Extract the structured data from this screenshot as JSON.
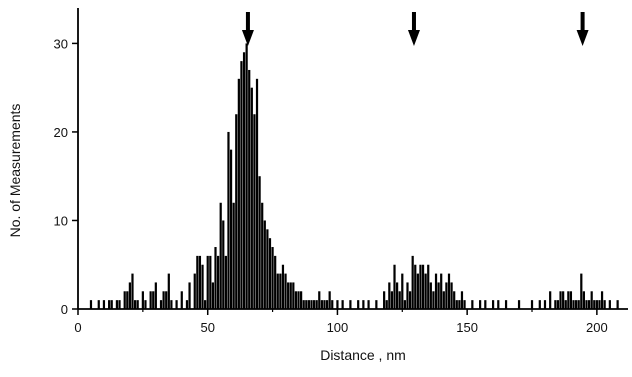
{
  "chart_data": {
    "type": "bar",
    "xlabel": "Distance , nm",
    "ylabel": "No. of Measurements",
    "xlim": [
      0,
      212
    ],
    "ylim": [
      0,
      34
    ],
    "xticks": [
      0,
      50,
      100,
      150,
      200
    ],
    "yticks": [
      0,
      10,
      20,
      30
    ],
    "xtick_labels": [
      "0",
      "50",
      "100",
      "150",
      "200"
    ],
    "ytick_labels": [
      "0",
      "10",
      "20",
      "30"
    ],
    "grid": false,
    "bar_color": "#000000",
    "arrows_at_x": [
      65.5,
      129.5,
      194.5
    ],
    "x": [
      5,
      8,
      10,
      12,
      13,
      15,
      16,
      18,
      19,
      20,
      21,
      22,
      23,
      25,
      26,
      28,
      29,
      30,
      32,
      33,
      34,
      35,
      36,
      38,
      40,
      42,
      43,
      45,
      46,
      47,
      48,
      49,
      50,
      51,
      52,
      53,
      54,
      55,
      56,
      57,
      58,
      59,
      60,
      61,
      62,
      63,
      64,
      65,
      66,
      67,
      68,
      69,
      70,
      71,
      72,
      73,
      74,
      75,
      76,
      77,
      78,
      79,
      80,
      81,
      82,
      83,
      84,
      85,
      86,
      87,
      88,
      89,
      90,
      91,
      92,
      93,
      94,
      95,
      96,
      97,
      98,
      100,
      102,
      105,
      108,
      110,
      112,
      115,
      118,
      119,
      120,
      121,
      122,
      123,
      124,
      125,
      126,
      127,
      128,
      129,
      130,
      131,
      132,
      133,
      134,
      135,
      136,
      137,
      138,
      139,
      140,
      141,
      142,
      143,
      144,
      145,
      146,
      147,
      148,
      149,
      152,
      155,
      157,
      160,
      162,
      165,
      170,
      175,
      178,
      180,
      182,
      184,
      185,
      186,
      187,
      188,
      189,
      190,
      191,
      192,
      193,
      194,
      195,
      196,
      197,
      198,
      199,
      200,
      201,
      202,
      203,
      205,
      208
    ],
    "values": [
      1,
      1,
      1,
      1,
      1,
      1,
      1,
      2,
      2,
      3,
      4,
      1,
      1,
      2,
      1,
      2,
      2,
      3,
      1,
      2,
      2,
      4,
      1,
      1,
      2,
      1,
      3,
      4,
      6,
      6,
      5,
      1,
      6,
      6,
      3,
      7,
      6,
      12,
      10,
      6,
      20,
      18,
      12,
      22,
      26,
      28,
      29,
      30,
      27,
      25,
      22,
      26,
      15,
      12,
      10,
      9,
      8,
      7,
      6,
      4,
      4,
      5,
      4,
      3,
      3,
      3,
      2,
      2,
      2,
      1,
      1,
      1,
      1,
      1,
      1,
      2,
      1,
      1,
      1,
      2,
      1,
      1,
      1,
      1,
      1,
      1,
      1,
      1,
      2,
      1,
      3,
      2,
      5,
      3,
      2,
      4,
      1,
      3,
      2,
      6,
      5,
      4,
      5,
      5,
      4,
      5,
      3,
      2,
      4,
      3,
      4,
      2,
      3,
      4,
      3,
      2,
      1,
      1,
      2,
      1,
      1,
      1,
      1,
      1,
      1,
      1,
      1,
      1,
      1,
      1,
      2,
      1,
      1,
      2,
      2,
      1,
      2,
      2,
      1,
      1,
      1,
      4,
      2,
      1,
      1,
      2,
      1,
      1,
      1,
      2,
      1,
      1,
      1
    ]
  }
}
